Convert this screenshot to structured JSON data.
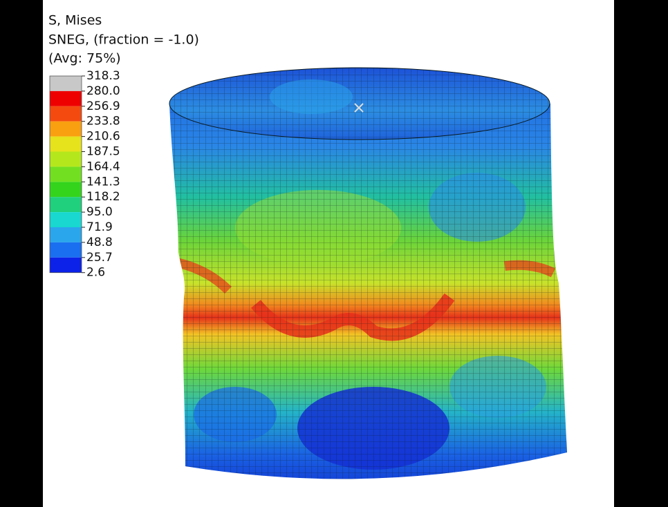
{
  "legend": {
    "title_lines": [
      "S, Mises",
      "SNEG, (fraction = -1.0)",
      "(Avg: 75%)"
    ],
    "labels": [
      "318.3",
      "280.0",
      "256.9",
      "233.8",
      "210.6",
      "187.5",
      "164.4",
      "141.3",
      "118.2",
      "95.0",
      "71.9",
      "48.8",
      "25.7",
      "2.6"
    ],
    "colors": [
      "#c8c8c8",
      "#ee0000",
      "#f44a10",
      "#f9a010",
      "#e6e21c",
      "#b4e81c",
      "#72e020",
      "#34d41c",
      "#20d07c",
      "#18d8d0",
      "#2aa6ec",
      "#1a6ef0",
      "#0c22e8"
    ]
  }
}
